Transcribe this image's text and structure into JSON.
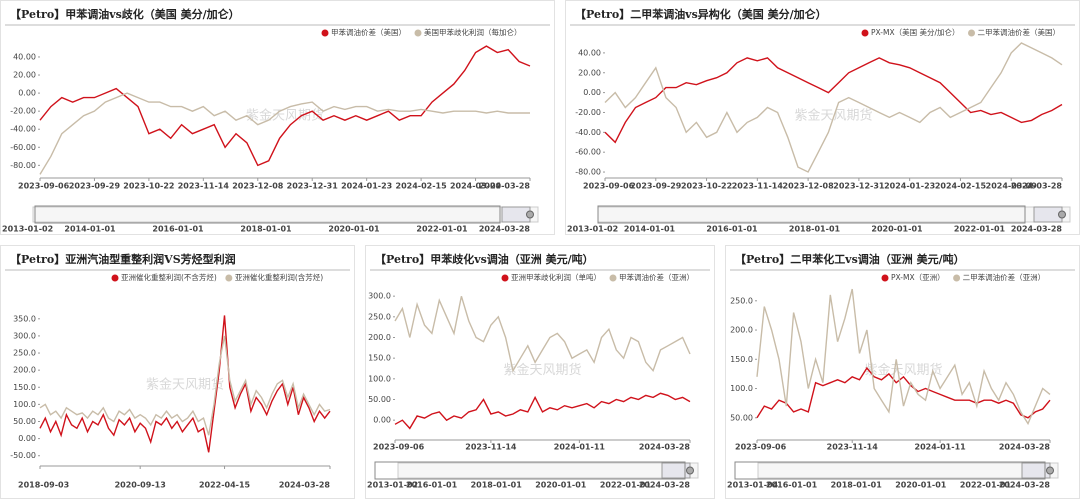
{
  "chart_data": [
    {
      "type": "line",
      "title": "【Petro】甲苯调油vs歧化（美国 美分/加仑）",
      "watermark": "紫金天风期货",
      "categories": [
        "2023-09-06",
        null,
        null,
        null,
        null,
        "2023-09-29",
        null,
        null,
        null,
        null,
        "2023-10-22",
        null,
        null,
        null,
        null,
        "2023-11-14",
        null,
        null,
        null,
        null,
        "2023-12-08",
        null,
        null,
        null,
        null,
        "2023-12-31",
        null,
        null,
        null,
        null,
        "2024-01-23",
        null,
        null,
        null,
        null,
        "2024-02-15",
        null,
        null,
        null,
        null,
        "2024-03-09",
        null,
        null,
        null,
        null,
        "2024-03-28"
      ],
      "series": [
        {
          "name": "甲苯调油价差（美国）",
          "color": "#d0121b",
          "values": [
            -30,
            -15,
            -5,
            -10,
            -5,
            -5,
            0,
            5,
            -5,
            -15,
            -45,
            -40,
            -50,
            -35,
            -45,
            -40,
            -35,
            -60,
            -45,
            -55,
            -80,
            -75,
            -50,
            -35,
            -25,
            -20,
            -30,
            -25,
            -30,
            -25,
            -30,
            -25,
            -20,
            -30,
            -25,
            -25,
            -10,
            0,
            10,
            25,
            45,
            52,
            45,
            48,
            35,
            30
          ]
        },
        {
          "name": "美国甲苯歧化利润（每加仑）",
          "color": "#c8bca8",
          "values": [
            -90,
            -70,
            -45,
            -35,
            -25,
            -20,
            -10,
            -5,
            0,
            -5,
            -10,
            -10,
            -15,
            -15,
            -20,
            -15,
            -25,
            -20,
            -30,
            -25,
            -35,
            -30,
            -20,
            -15,
            -12,
            -10,
            -20,
            -15,
            -18,
            -15,
            -15,
            -20,
            -18,
            -20,
            -20,
            -18,
            -20,
            -22,
            -20,
            -20,
            -20,
            -22,
            -20,
            -22,
            -22,
            -22
          ]
        }
      ],
      "ylim": [
        -94,
        61
      ],
      "yticks": [
        {
          "value": 40,
          "label": "40.00"
        },
        {
          "value": 20,
          "label": "20.00"
        },
        {
          "value": 0,
          "label": "0.00"
        },
        {
          "value": -20,
          "label": "-20.00"
        },
        {
          "value": -40,
          "label": "-40.00"
        },
        {
          "value": -60,
          "label": "-60.00"
        },
        {
          "value": -80,
          "label": "-80.00"
        }
      ],
      "navigator": [
        "2013-01-02",
        "2014-01-01",
        "2016-01-01",
        "2018-01-01",
        "2020-01-01",
        "2022-01-01",
        "2024-03-28"
      ]
    },
    {
      "type": "line",
      "title": "【Petro】二甲苯调油vs异构化（美国 美分/加仑）",
      "watermark": "紫金天风期货",
      "categories": [
        "2023-09-06",
        null,
        null,
        null,
        null,
        "2023-09-29",
        null,
        null,
        null,
        null,
        "2023-10-22",
        null,
        null,
        null,
        null,
        "2023-11-14",
        null,
        null,
        null,
        null,
        "2023-12-08",
        null,
        null,
        null,
        null,
        "2023-12-31",
        null,
        null,
        null,
        null,
        "2024-01-23",
        null,
        null,
        null,
        null,
        "2024-02-15",
        null,
        null,
        null,
        null,
        "2024-03-09",
        null,
        null,
        null,
        null,
        "2024-03-28"
      ],
      "series": [
        {
          "name": "PX-MX（美国 美分/加仑）",
          "color": "#d0121b",
          "values": [
            -40,
            -50,
            -30,
            -15,
            -10,
            -5,
            5,
            5,
            10,
            8,
            12,
            15,
            20,
            30,
            35,
            32,
            35,
            25,
            20,
            15,
            10,
            5,
            0,
            10,
            20,
            25,
            30,
            35,
            30,
            28,
            25,
            20,
            15,
            10,
            0,
            -10,
            -20,
            -18,
            -22,
            -20,
            -25,
            -30,
            -28,
            -22,
            -18,
            -12
          ]
        },
        {
          "name": "二甲苯调油价差（美国）",
          "color": "#c8bca8",
          "values": [
            -10,
            0,
            -15,
            -5,
            10,
            25,
            -5,
            -15,
            -40,
            -30,
            -45,
            -40,
            -20,
            -40,
            -30,
            -25,
            -15,
            -20,
            -45,
            -75,
            -80,
            -60,
            -40,
            -10,
            -5,
            -10,
            -15,
            -20,
            -25,
            -20,
            -25,
            -30,
            -20,
            -15,
            -25,
            -20,
            -15,
            -10,
            5,
            20,
            40,
            50,
            45,
            40,
            35,
            28
          ]
        }
      ],
      "ylim": [
        -86,
        55
      ],
      "yticks": [
        {
          "value": 40,
          "label": "40.00"
        },
        {
          "value": 20,
          "label": "20.00"
        },
        {
          "value": 0,
          "label": "0.00"
        },
        {
          "value": -20,
          "label": "-20.00"
        },
        {
          "value": -40,
          "label": "-40.00"
        },
        {
          "value": -60,
          "label": "-60.00"
        },
        {
          "value": -80,
          "label": "-80.00"
        }
      ],
      "navigator": [
        "2013-01-02",
        "2014-01-01",
        "2016-01-01",
        "2018-01-01",
        "2020-01-01",
        "2022-01-01",
        "2024-03-28"
      ]
    },
    {
      "type": "line",
      "title": "【Petro】亚洲汽油型重整利润VS芳烃型利润",
      "watermark": "紫金天风期货",
      "categories": [
        "2018-09-03",
        null,
        null,
        null,
        null,
        null,
        null,
        null,
        null,
        null,
        null,
        null,
        null,
        null,
        null,
        null,
        null,
        null,
        null,
        "2020-09-13",
        null,
        null,
        null,
        null,
        null,
        null,
        null,
        null,
        null,
        null,
        null,
        null,
        null,
        null,
        null,
        "2022-04-15",
        null,
        null,
        null,
        null,
        null,
        null,
        null,
        null,
        null,
        null,
        null,
        null,
        null,
        null,
        null,
        null,
        null,
        null,
        null,
        "2024-03-28"
      ],
      "series": [
        {
          "name": "亚洲催化重整利润(不含芳烃)",
          "color": "#d0121b",
          "values": [
            30,
            60,
            20,
            50,
            10,
            70,
            40,
            30,
            60,
            20,
            50,
            40,
            70,
            30,
            10,
            55,
            40,
            60,
            20,
            45,
            30,
            -10,
            50,
            40,
            60,
            30,
            50,
            20,
            40,
            60,
            20,
            30,
            -40,
            80,
            200,
            360,
            150,
            90,
            130,
            160,
            80,
            120,
            100,
            70,
            110,
            140,
            160,
            100,
            150,
            70,
            120,
            90,
            50,
            80,
            60,
            80
          ]
        },
        {
          "name": "亚洲催化重整利润(含芳烃)",
          "color": "#c8bca8",
          "values": [
            90,
            100,
            70,
            80,
            60,
            90,
            80,
            70,
            75,
            60,
            80,
            70,
            90,
            60,
            50,
            80,
            70,
            85,
            60,
            70,
            60,
            40,
            70,
            60,
            80,
            60,
            70,
            50,
            60,
            80,
            50,
            60,
            10,
            100,
            220,
            300,
            170,
            110,
            140,
            170,
            100,
            140,
            120,
            90,
            130,
            160,
            170,
            120,
            160,
            90,
            130,
            100,
            70,
            100,
            80,
            85
          ]
        }
      ],
      "ylim": [
        -80,
        440
      ],
      "yticks": [
        {
          "value": 350,
          "label": "350.0"
        },
        {
          "value": 300,
          "label": "300.0"
        },
        {
          "value": 250,
          "label": "250.0"
        },
        {
          "value": 200,
          "label": "200.0"
        },
        {
          "value": 150,
          "label": "150.0"
        },
        {
          "value": 100,
          "label": "100.0"
        },
        {
          "value": 50,
          "label": "50.00"
        },
        {
          "value": 0,
          "label": "0.00"
        },
        {
          "value": -50,
          "label": "-50.00"
        }
      ]
    },
    {
      "type": "line",
      "title": "【Petro】甲苯歧化vs调油（亚洲 美元/吨）",
      "watermark": "紫金天风期货",
      "categories": [
        "2023-09-06",
        null,
        null,
        null,
        null,
        null,
        null,
        null,
        null,
        null,
        null,
        null,
        null,
        "2023-11-14",
        null,
        null,
        null,
        null,
        null,
        null,
        null,
        null,
        null,
        null,
        null,
        "2024-01-11",
        null,
        null,
        null,
        null,
        null,
        null,
        null,
        null,
        null,
        null,
        null,
        null,
        null,
        null,
        "2024-03-28"
      ],
      "series": [
        {
          "name": "亚洲甲苯歧化利润（单吨）",
          "color": "#d0121b",
          "values": [
            -10,
            0,
            -20,
            10,
            5,
            15,
            20,
            0,
            10,
            5,
            20,
            25,
            50,
            15,
            20,
            10,
            15,
            25,
            20,
            55,
            20,
            30,
            25,
            35,
            30,
            35,
            40,
            30,
            45,
            40,
            50,
            45,
            55,
            50,
            60,
            55,
            65,
            60,
            50,
            55,
            45
          ]
        },
        {
          "name": "甲苯调油价差（亚洲）",
          "color": "#c8bca8",
          "values": [
            240,
            270,
            200,
            280,
            230,
            210,
            290,
            250,
            210,
            300,
            240,
            200,
            190,
            230,
            250,
            200,
            120,
            150,
            180,
            140,
            170,
            200,
            210,
            190,
            150,
            160,
            170,
            140,
            200,
            220,
            170,
            150,
            200,
            190,
            140,
            120,
            170,
            180,
            190,
            200,
            160
          ]
        }
      ],
      "ylim": [
        -48,
        327
      ],
      "yticks": [
        {
          "value": 300,
          "label": "300.0"
        },
        {
          "value": 250,
          "label": "250.0"
        },
        {
          "value": 200,
          "label": "200.0"
        },
        {
          "value": 150,
          "label": "150.0"
        },
        {
          "value": 100,
          "label": "100.0"
        },
        {
          "value": 50,
          "label": "50.00"
        },
        {
          "value": 0,
          "label": "0.00"
        }
      ],
      "navigator": [
        "2013-01-02",
        "2016-01-01",
        "2018-01-01",
        "2020-01-01",
        "2022-01-01",
        "2024-03-28"
      ]
    },
    {
      "type": "line",
      "title": "【Petro】二甲苯化工vs调油（亚洲 美元/吨）",
      "watermark": "紫金天风期货",
      "categories": [
        "2023-09-06",
        null,
        null,
        null,
        null,
        null,
        null,
        null,
        null,
        null,
        null,
        null,
        null,
        "2023-11-14",
        null,
        null,
        null,
        null,
        null,
        null,
        null,
        null,
        null,
        null,
        null,
        "2024-01-11",
        null,
        null,
        null,
        null,
        null,
        null,
        null,
        null,
        null,
        null,
        null,
        null,
        null,
        null,
        "2024-03-28"
      ],
      "series": [
        {
          "name": "PX-MX（亚洲）",
          "color": "#d0121b",
          "values": [
            50,
            70,
            65,
            80,
            75,
            60,
            65,
            60,
            110,
            105,
            110,
            115,
            110,
            120,
            115,
            135,
            120,
            115,
            125,
            110,
            120,
            105,
            95,
            100,
            95,
            90,
            85,
            80,
            80,
            80,
            75,
            80,
            80,
            75,
            80,
            75,
            55,
            50,
            60,
            65,
            80
          ]
        },
        {
          "name": "二甲苯调油价差（亚洲）",
          "color": "#c8bca8",
          "values": [
            120,
            240,
            200,
            150,
            70,
            230,
            180,
            100,
            150,
            110,
            260,
            180,
            220,
            270,
            160,
            200,
            100,
            80,
            60,
            150,
            70,
            110,
            90,
            80,
            130,
            100,
            120,
            140,
            90,
            110,
            70,
            130,
            100,
            80,
            110,
            90,
            60,
            40,
            70,
            100,
            90
          ]
        }
      ],
      "ylim": [
        12,
        277
      ],
      "yticks": [
        {
          "value": 250,
          "label": "250.0"
        },
        {
          "value": 200,
          "label": "200.0"
        },
        {
          "value": 150,
          "label": "150.0"
        },
        {
          "value": 100,
          "label": "100.0"
        },
        {
          "value": 50,
          "label": "50.00"
        }
      ],
      "navigator": [
        "2013-01-04",
        "2016-01-01",
        "2018-01-01",
        "2020-01-01",
        "2022-01-01",
        "2024-03-28"
      ]
    }
  ]
}
